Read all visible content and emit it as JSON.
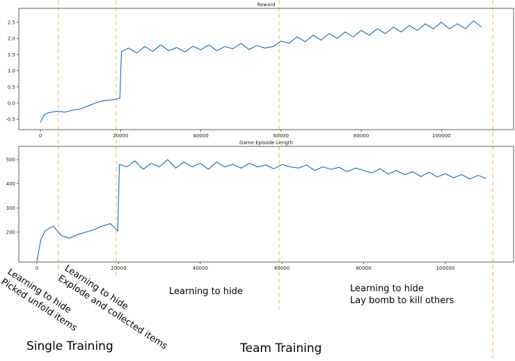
{
  "chart_data": [
    {
      "type": "line",
      "title": "Reward",
      "x": [
        0,
        1000,
        2000,
        4000,
        6000,
        8000,
        10000,
        12000,
        14000,
        16000,
        18000,
        19800,
        20200,
        22000,
        24000,
        26000,
        28000,
        30000,
        32000,
        34000,
        36000,
        38000,
        40000,
        42000,
        44000,
        46000,
        48000,
        50000,
        52000,
        54000,
        56000,
        58000,
        60000,
        62000,
        64000,
        66000,
        68000,
        70000,
        72000,
        74000,
        76000,
        78000,
        80000,
        82000,
        84000,
        86000,
        88000,
        90000,
        92000,
        94000,
        96000,
        98000,
        100000,
        102000,
        104000,
        106000,
        108000,
        110000
      ],
      "series": [
        {
          "color": "#1f77b4",
          "values": [
            -0.6,
            -0.35,
            -0.3,
            -0.25,
            -0.28,
            -0.22,
            -0.18,
            -0.08,
            0.02,
            0.08,
            0.1,
            0.15,
            1.6,
            1.7,
            1.55,
            1.75,
            1.6,
            1.8,
            1.62,
            1.72,
            1.58,
            1.76,
            1.65,
            1.8,
            1.62,
            1.75,
            1.68,
            1.85,
            1.66,
            1.78,
            1.7,
            1.75,
            1.92,
            1.85,
            2.05,
            1.9,
            2.1,
            1.95,
            2.15,
            2.0,
            2.2,
            2.05,
            2.25,
            2.1,
            2.3,
            2.15,
            2.35,
            2.2,
            2.4,
            2.25,
            2.45,
            2.3,
            2.5,
            2.3,
            2.45,
            2.3,
            2.55,
            2.35
          ]
        }
      ],
      "xlim": [
        -5400,
        118000
      ],
      "xticks": [
        0,
        20000,
        40000,
        60000,
        80000,
        100000
      ],
      "ylim": [
        -0.82,
        2.93
      ],
      "yticks": [
        -0.5,
        {
          "value": 0,
          "label": "0.0"
        },
        0.5,
        {
          "value": 1,
          "label": "1.0"
        },
        1.5,
        {
          "value": 2,
          "label": "2.0"
        },
        2.5
      ]
    },
    {
      "type": "line",
      "title": "Game Episode Length",
      "x": [
        0,
        1000,
        2000,
        4000,
        6000,
        8000,
        10000,
        12000,
        14000,
        16000,
        18000,
        19800,
        20200,
        22000,
        24000,
        26000,
        28000,
        30000,
        32000,
        34000,
        36000,
        38000,
        40000,
        42000,
        44000,
        46000,
        48000,
        50000,
        52000,
        54000,
        56000,
        58000,
        60000,
        62000,
        64000,
        66000,
        68000,
        70000,
        72000,
        74000,
        76000,
        78000,
        80000,
        82000,
        84000,
        86000,
        88000,
        90000,
        92000,
        94000,
        96000,
        98000,
        100000,
        102000,
        104000,
        106000,
        108000,
        110000
      ],
      "series": [
        {
          "color": "#1f77b4",
          "values": [
            80,
            170,
            205,
            225,
            185,
            175,
            190,
            200,
            210,
            225,
            235,
            205,
            480,
            470,
            495,
            460,
            485,
            470,
            500,
            465,
            490,
            470,
            485,
            460,
            490,
            470,
            480,
            465,
            485,
            470,
            478,
            462,
            480,
            470,
            465,
            478,
            455,
            470,
            460,
            468,
            450,
            465,
            455,
            445,
            462,
            440,
            455,
            438,
            450,
            430,
            448,
            428,
            442,
            425,
            438,
            420,
            435,
            422
          ]
        }
      ],
      "xlim": [
        -4430,
        116700
      ],
      "xticks": [
        0,
        20000,
        40000,
        60000,
        80000,
        100000
      ],
      "ylim": [
        76,
        555
      ],
      "yticks": [
        200,
        300,
        400,
        500
      ]
    }
  ],
  "annotations": [
    {
      "lines": [
        "Learning to hide",
        "Picked unfold items"
      ]
    },
    {
      "lines": [
        "Learning to hide",
        "Explode and collected items"
      ]
    },
    {
      "lines": [
        "Learning to hide"
      ]
    },
    {
      "lines": [
        "Learning to hide",
        "Lay bomb to kill others"
      ]
    },
    {
      "lines": [
        "Single Training"
      ]
    },
    {
      "lines": [
        "Team Training"
      ]
    }
  ]
}
